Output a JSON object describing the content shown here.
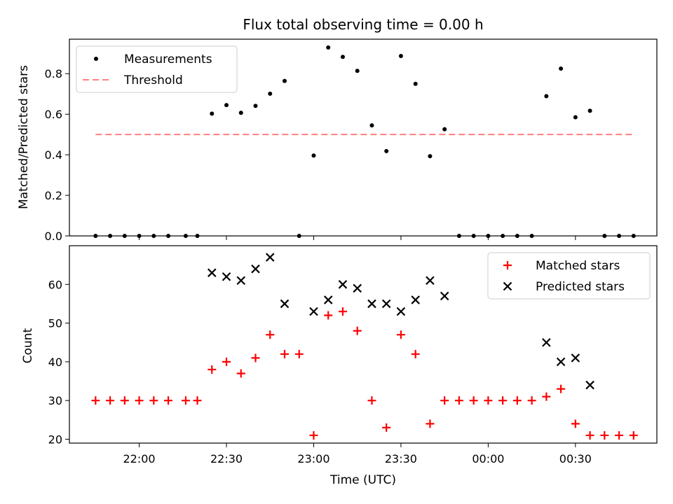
{
  "chart_data": [
    {
      "type": "scatter",
      "title": "Flux total observing time = 0.00 h",
      "xlabel": "",
      "ylabel": "Matched/Predicted stars",
      "ylim": [
        0,
        0.97
      ],
      "yticks": [
        "0.0",
        "0.2",
        "0.4",
        "0.6",
        "0.8"
      ],
      "yticks_values": [
        0.0,
        0.2,
        0.4,
        0.6,
        0.8
      ],
      "legend": "top-left",
      "series": [
        {
          "name": "Measurements",
          "kind": "scatter",
          "color": "#000000",
          "marker": "dot",
          "points": [
            [
              "21:45",
              0.0
            ],
            [
              "21:50",
              0.0
            ],
            [
              "21:55",
              0.0
            ],
            [
              "22:00",
              0.0
            ],
            [
              "22:05",
              0.0
            ],
            [
              "22:10",
              0.0
            ],
            [
              "22:16",
              0.0
            ],
            [
              "22:20",
              0.0
            ],
            [
              "22:25",
              0.603
            ],
            [
              "22:30",
              0.645
            ],
            [
              "22:35",
              0.607
            ],
            [
              "22:40",
              0.641
            ],
            [
              "22:45",
              0.701
            ],
            [
              "22:50",
              0.764
            ],
            [
              "22:55",
              0.0
            ],
            [
              "23:00",
              0.396
            ],
            [
              "23:05",
              0.929
            ],
            [
              "23:10",
              0.883
            ],
            [
              "23:15",
              0.814
            ],
            [
              "23:20",
              0.545
            ],
            [
              "23:25",
              0.418
            ],
            [
              "23:30",
              0.887
            ],
            [
              "23:35",
              0.75
            ],
            [
              "23:40",
              0.393
            ],
            [
              "23:45",
              0.526
            ],
            [
              "23:50",
              0.0
            ],
            [
              "23:55",
              0.0
            ],
            [
              "00:00",
              0.0
            ],
            [
              "00:05",
              0.0
            ],
            [
              "00:10",
              0.0
            ],
            [
              "00:15",
              0.0
            ],
            [
              "00:20",
              0.689
            ],
            [
              "00:25",
              0.825
            ],
            [
              "00:30",
              0.585
            ],
            [
              "00:35",
              0.617
            ],
            [
              "00:40",
              0.0
            ],
            [
              "00:45",
              0.0
            ],
            [
              "00:50",
              0.0
            ]
          ]
        },
        {
          "name": "Threshold",
          "kind": "line",
          "style": "dashed",
          "color": "#ff7f7f",
          "points": [
            [
              "21:45",
              0.5
            ],
            [
              "00:50",
              0.5
            ]
          ]
        }
      ]
    },
    {
      "type": "scatter",
      "title": "",
      "xlabel": "Time (UTC)",
      "ylabel": "Count",
      "ylim": [
        19,
        70
      ],
      "yticks": [
        "20",
        "30",
        "40",
        "50",
        "60"
      ],
      "yticks_values": [
        20,
        30,
        40,
        50,
        60
      ],
      "xticks": [
        "22:00",
        "22:30",
        "23:00",
        "23:30",
        "00:00",
        "00:30"
      ],
      "legend": "top-right",
      "series": [
        {
          "name": "Matched stars",
          "kind": "scatter",
          "color": "#ff0000",
          "marker": "plus",
          "points": [
            [
              "21:45",
              30
            ],
            [
              "21:50",
              30
            ],
            [
              "21:55",
              30
            ],
            [
              "22:00",
              30
            ],
            [
              "22:05",
              30
            ],
            [
              "22:10",
              30
            ],
            [
              "22:16",
              30
            ],
            [
              "22:20",
              30
            ],
            [
              "22:25",
              38
            ],
            [
              "22:30",
              40
            ],
            [
              "22:35",
              37
            ],
            [
              "22:40",
              41
            ],
            [
              "22:45",
              47
            ],
            [
              "22:50",
              42
            ],
            [
              "22:55",
              42
            ],
            [
              "23:00",
              21
            ],
            [
              "23:05",
              52
            ],
            [
              "23:10",
              53
            ],
            [
              "23:15",
              48
            ],
            [
              "23:20",
              30
            ],
            [
              "23:25",
              23
            ],
            [
              "23:30",
              47
            ],
            [
              "23:35",
              42
            ],
            [
              "23:40",
              24
            ],
            [
              "23:45",
              30
            ],
            [
              "23:50",
              30
            ],
            [
              "23:55",
              30
            ],
            [
              "00:00",
              30
            ],
            [
              "00:05",
              30
            ],
            [
              "00:10",
              30
            ],
            [
              "00:15",
              30
            ],
            [
              "00:20",
              31
            ],
            [
              "00:25",
              33
            ],
            [
              "00:30",
              24
            ],
            [
              "00:35",
              21
            ],
            [
              "00:40",
              21
            ],
            [
              "00:45",
              21
            ],
            [
              "00:50",
              21
            ]
          ]
        },
        {
          "name": "Predicted stars",
          "kind": "scatter",
          "color": "#000000",
          "marker": "x",
          "points": [
            [
              "22:25",
              63
            ],
            [
              "22:30",
              62
            ],
            [
              "22:35",
              61
            ],
            [
              "22:40",
              64
            ],
            [
              "22:45",
              67
            ],
            [
              "22:50",
              55
            ],
            [
              "23:00",
              53
            ],
            [
              "23:05",
              56
            ],
            [
              "23:10",
              60
            ],
            [
              "23:15",
              59
            ],
            [
              "23:20",
              55
            ],
            [
              "23:25",
              55
            ],
            [
              "23:30",
              53
            ],
            [
              "23:35",
              56
            ],
            [
              "23:40",
              61
            ],
            [
              "23:45",
              57
            ],
            [
              "00:20",
              45
            ],
            [
              "00:25",
              40
            ],
            [
              "00:30",
              41
            ],
            [
              "00:35",
              34
            ]
          ]
        }
      ]
    }
  ]
}
